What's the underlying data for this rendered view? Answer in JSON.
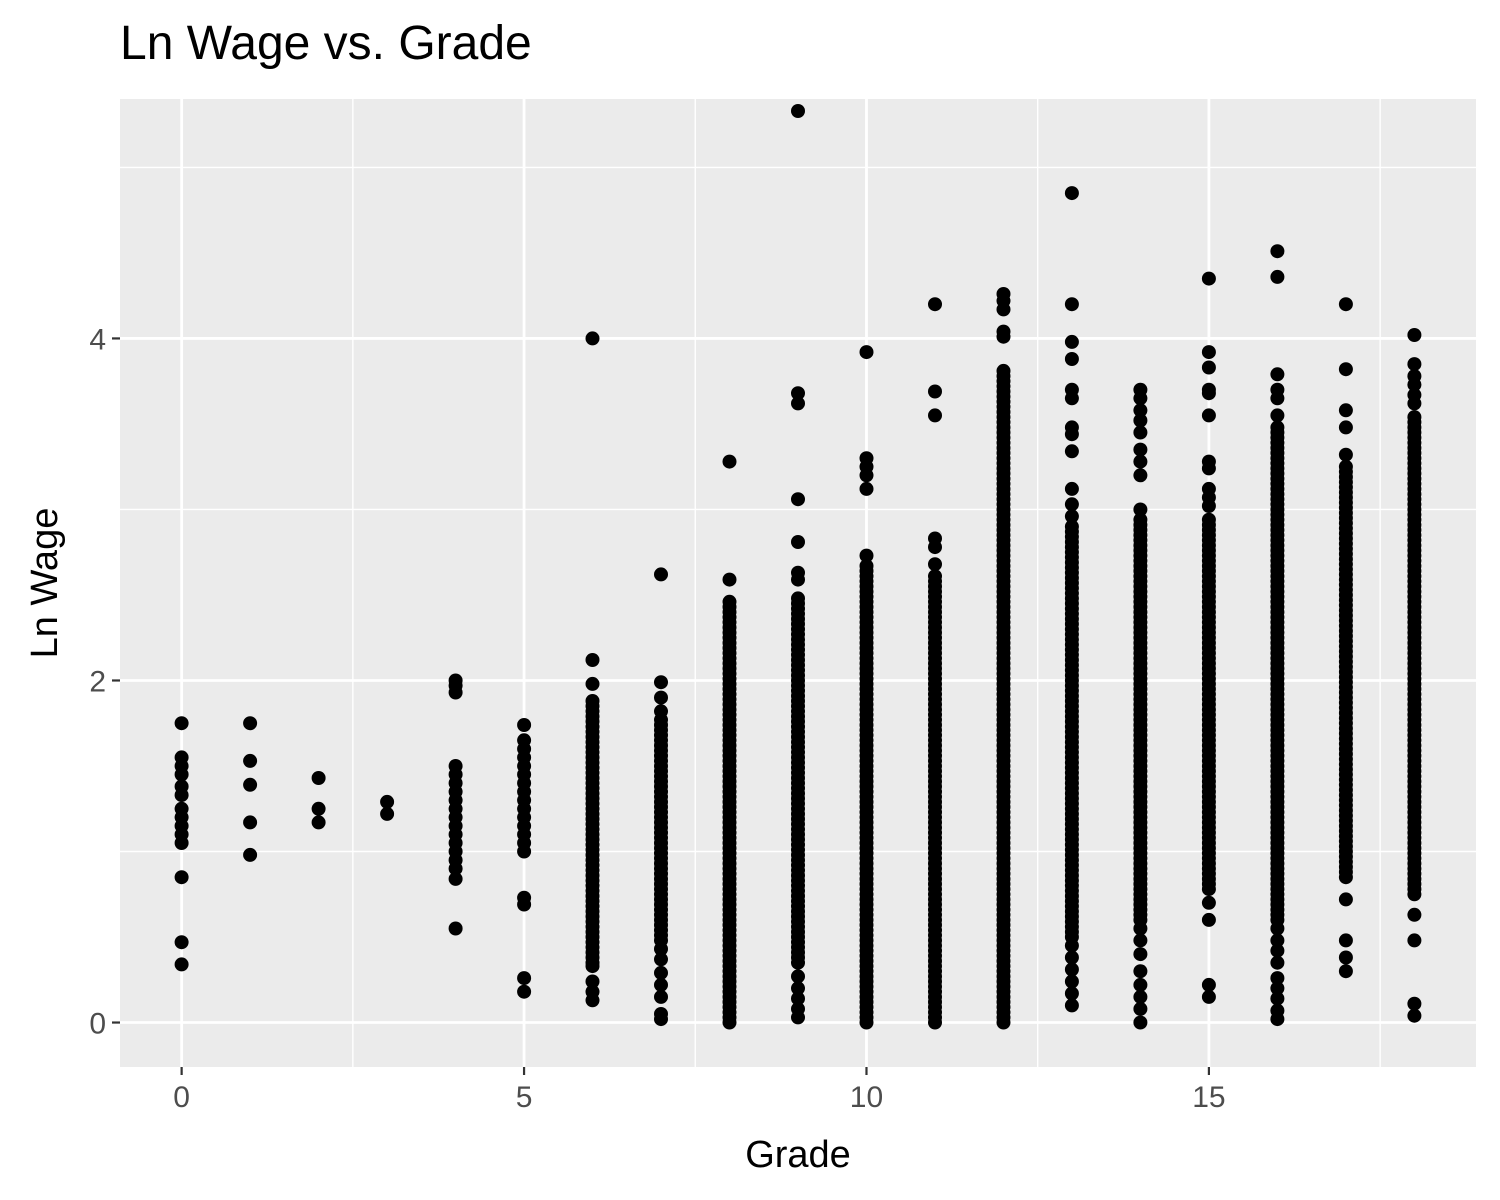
{
  "chart_data": {
    "type": "scatter",
    "title": "Ln Wage vs. Grade",
    "xlabel": "Grade",
    "ylabel": "Ln Wage",
    "xlim": [
      -0.9,
      18.9
    ],
    "ylim": [
      -0.26,
      5.4
    ],
    "x_ticks": [
      0,
      5,
      10,
      15
    ],
    "y_ticks": [
      0,
      2,
      4
    ],
    "grid": true,
    "point_color": "#000000",
    "panel_color": "#ebebeb",
    "grid_color": "#ffffff",
    "tick_color": "#333333",
    "points_by_grade": [
      {
        "x": 0,
        "y": [
          1.75,
          1.55,
          1.5,
          1.45,
          1.38,
          1.33,
          1.25,
          1.2,
          1.15,
          1.1,
          1.05,
          0.85,
          0.47,
          0.34
        ]
      },
      {
        "x": 1,
        "y": [
          1.75,
          1.53,
          1.39,
          1.17,
          0.98
        ]
      },
      {
        "x": 2,
        "y": [
          1.43,
          1.25,
          1.17
        ]
      },
      {
        "x": 3,
        "y": [
          1.29,
          1.22
        ]
      },
      {
        "x": 4,
        "y": [
          2.0,
          1.97,
          1.93,
          1.5,
          1.45,
          1.4,
          1.35,
          1.3,
          1.25,
          1.2,
          1.15,
          1.1,
          1.05,
          1.0,
          0.95,
          0.9,
          0.84,
          0.55
        ]
      },
      {
        "x": 5,
        "y": [
          1.74,
          1.65,
          1.6,
          1.55,
          1.5,
          1.45,
          1.4,
          1.35,
          1.3,
          1.25,
          1.2,
          1.15,
          1.1,
          1.05,
          1.0,
          0.73,
          0.69,
          0.26,
          0.18
        ]
      },
      {
        "x": 6,
        "y": [
          4.0,
          2.12,
          1.98,
          1.88
        ],
        "ranges": [
          [
            0.8,
            1.85
          ],
          [
            0.35,
            0.78
          ]
        ],
        "extra": [
          0.33,
          0.24,
          0.18,
          0.13
        ]
      },
      {
        "x": 7,
        "y": [
          2.62,
          1.99,
          1.9,
          1.82,
          0.43,
          0.37,
          0.29,
          0.22,
          0.15,
          0.05,
          0.02
        ],
        "ranges": [
          [
            0.48,
            1.78
          ]
        ]
      },
      {
        "x": 8,
        "y": [
          3.28,
          2.59
        ],
        "ranges": [
          [
            0.0,
            2.48
          ]
        ]
      },
      {
        "x": 9,
        "y": [
          5.33,
          3.68,
          3.62,
          3.06,
          2.81,
          2.63,
          2.59,
          0.27,
          0.2,
          0.14,
          0.08,
          0.03
        ],
        "ranges": [
          [
            0.35,
            2.5
          ]
        ]
      },
      {
        "x": 10,
        "y": [
          3.92,
          3.3,
          3.25,
          3.2,
          3.12,
          2.73
        ],
        "ranges": [
          [
            0.0,
            2.68
          ]
        ]
      },
      {
        "x": 11,
        "y": [
          4.2,
          3.69,
          3.55,
          2.83,
          2.78,
          2.68
        ],
        "ranges": [
          [
            0.0,
            2.62
          ]
        ]
      },
      {
        "x": 12,
        "y": [
          4.26,
          4.22,
          4.17,
          4.04,
          4.01
        ],
        "ranges": [
          [
            0.0,
            3.83
          ]
        ]
      },
      {
        "x": 13,
        "y": [
          4.85,
          4.2,
          3.98,
          3.88,
          3.7,
          3.65,
          3.48,
          3.44,
          3.34,
          3.12,
          3.03,
          2.96,
          0.45,
          0.38,
          0.31,
          0.24,
          0.17,
          0.1
        ],
        "ranges": [
          [
            0.5,
            2.92
          ]
        ]
      },
      {
        "x": 14,
        "y": [
          3.7,
          3.65,
          3.58,
          3.52,
          3.45,
          3.35,
          3.28,
          3.2,
          3.0,
          0.55,
          0.48,
          0.4,
          0.3,
          0.22,
          0.15,
          0.08,
          0.0
        ],
        "ranges": [
          [
            0.6,
            2.95
          ]
        ]
      },
      {
        "x": 15,
        "y": [
          4.35,
          3.92,
          3.83,
          3.7,
          3.68,
          3.55,
          3.28,
          3.24,
          3.12,
          3.07,
          3.02,
          0.7,
          0.6,
          0.22,
          0.15
        ],
        "ranges": [
          [
            0.78,
            2.95
          ]
        ]
      },
      {
        "x": 16,
        "y": [
          4.51,
          4.36,
          3.79,
          3.7,
          3.65,
          3.55,
          3.48,
          0.55,
          0.48,
          0.42,
          0.35,
          0.26,
          0.2,
          0.14,
          0.07,
          0.02
        ],
        "ranges": [
          [
            0.6,
            3.45
          ]
        ]
      },
      {
        "x": 17,
        "y": [
          4.2,
          3.82,
          3.58,
          3.48,
          3.32,
          0.72,
          0.48,
          0.38,
          0.3
        ],
        "ranges": [
          [
            0.85,
            3.25
          ]
        ]
      },
      {
        "x": 18,
        "y": [
          4.02,
          3.85,
          3.78,
          3.73,
          3.67,
          3.62,
          0.63,
          0.48,
          0.11,
          0.04
        ],
        "ranges": [
          [
            0.75,
            3.55
          ]
        ]
      }
    ]
  }
}
